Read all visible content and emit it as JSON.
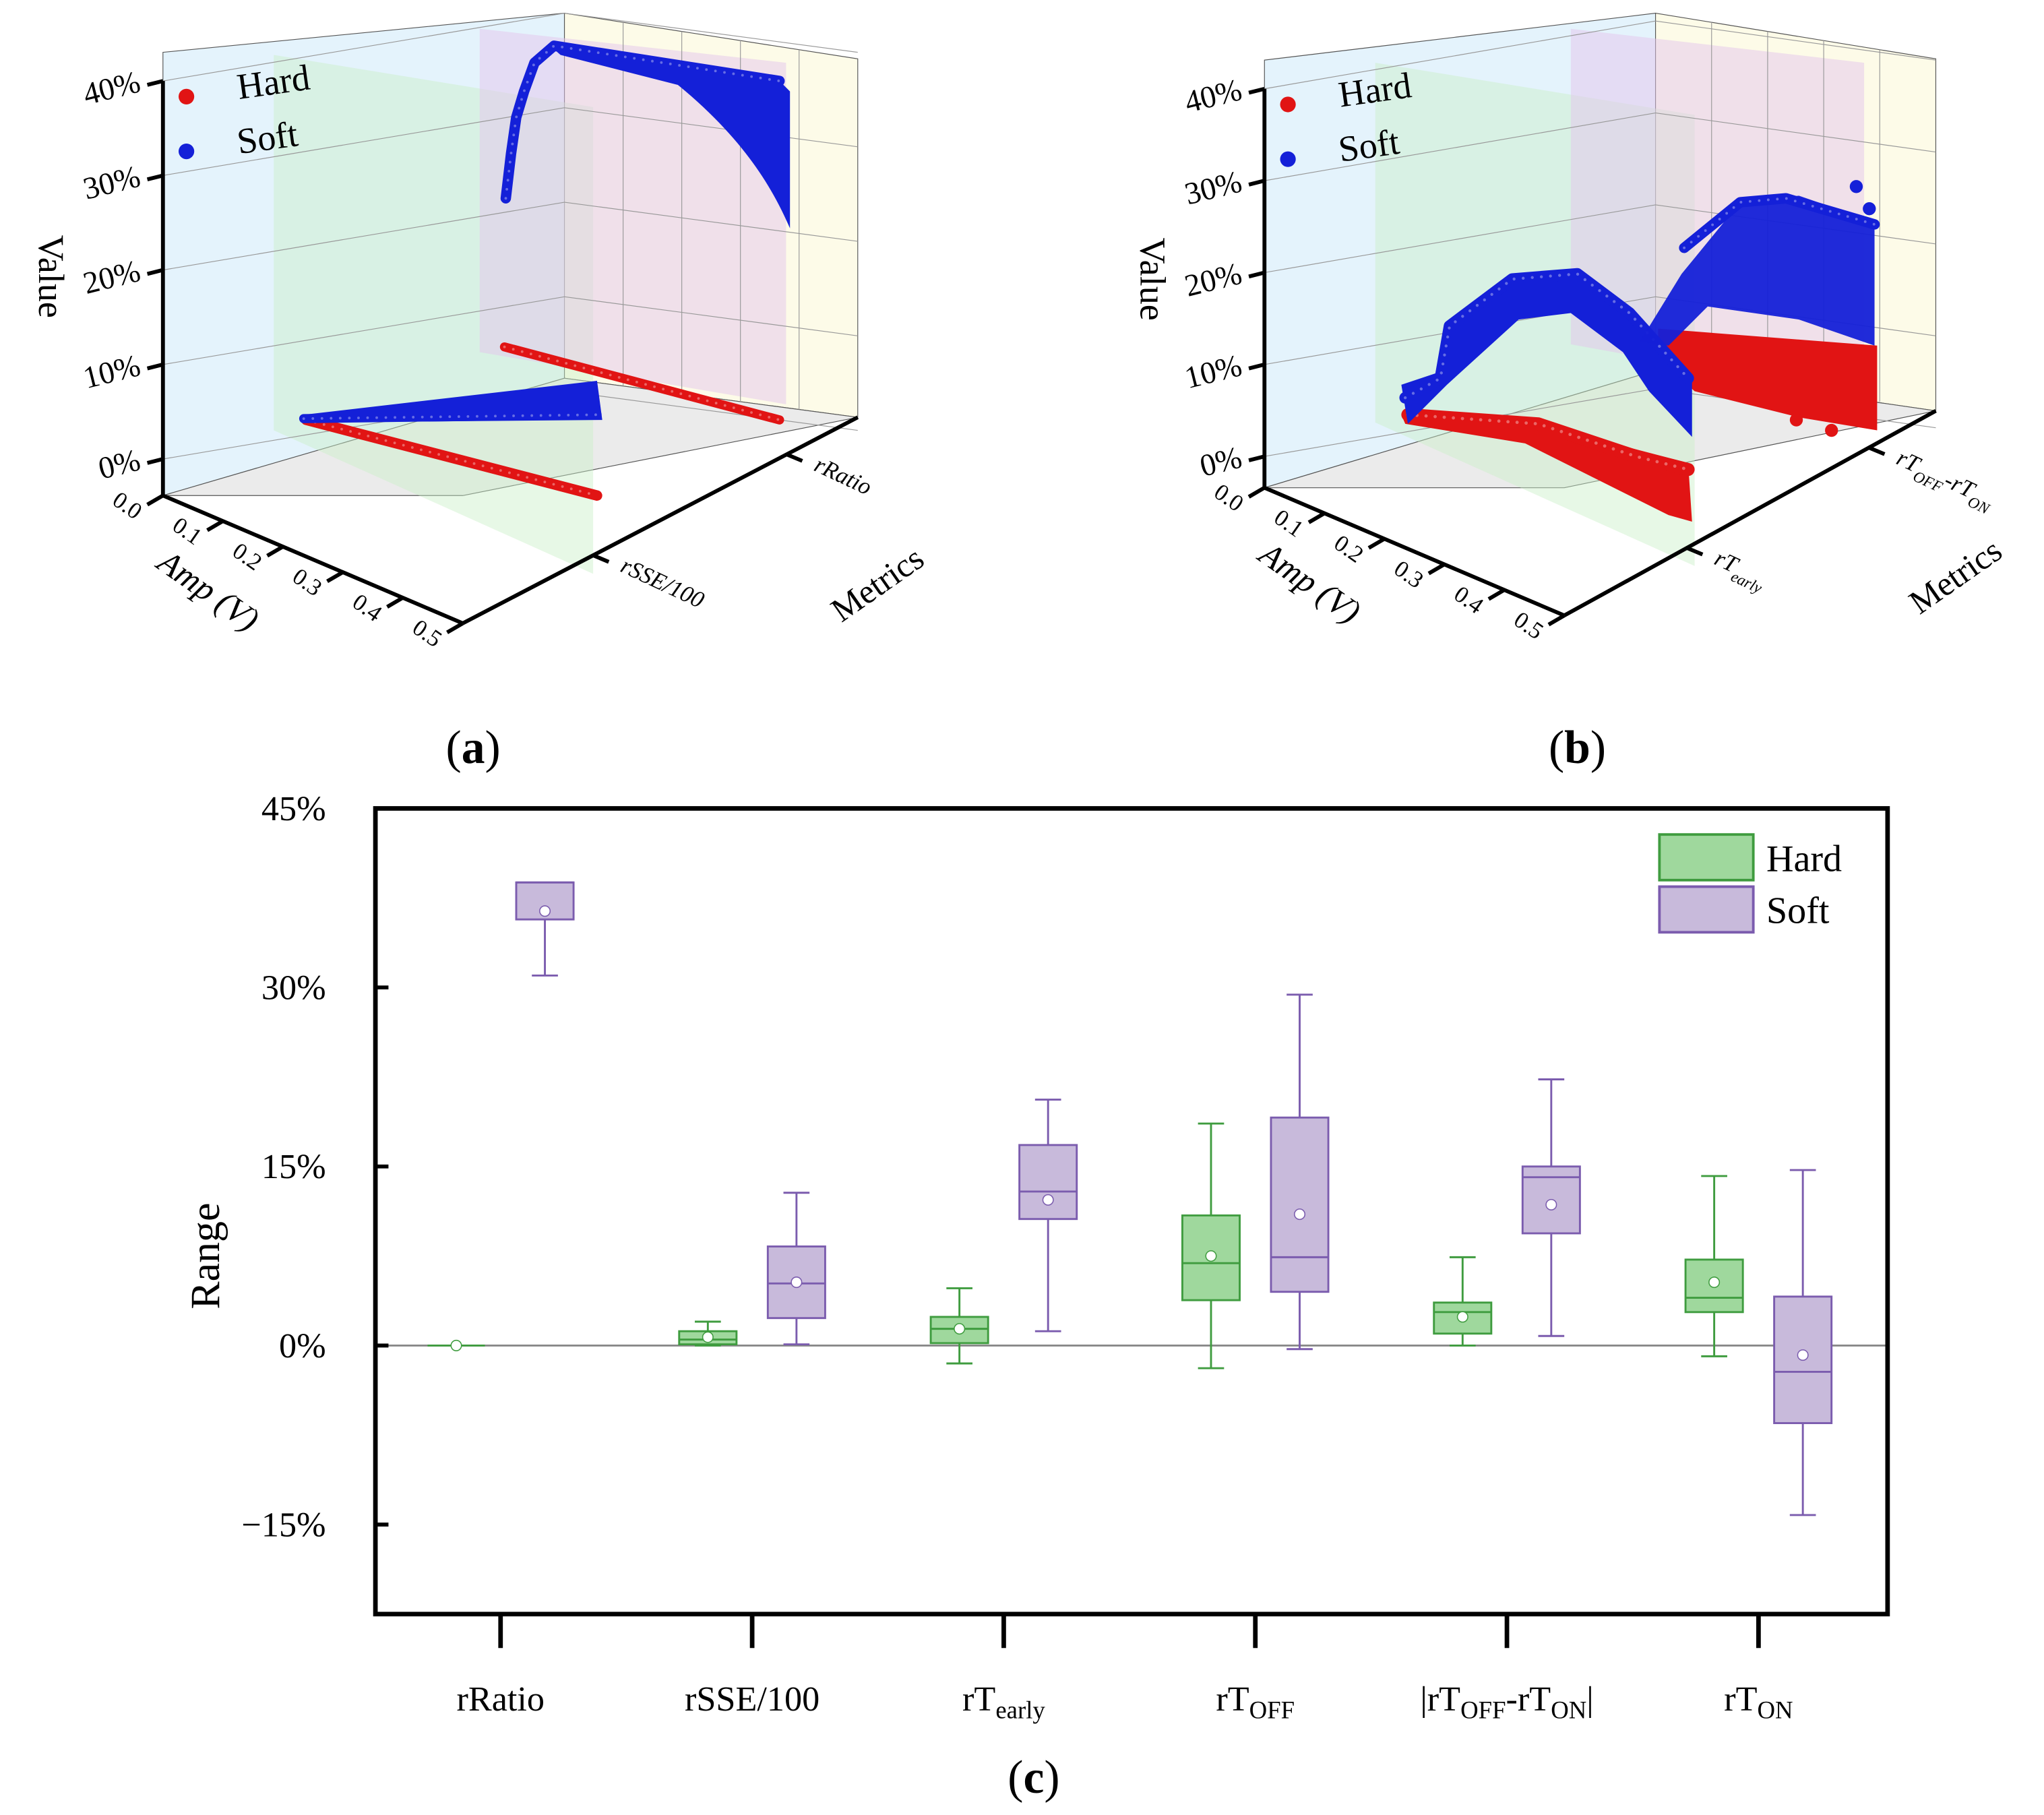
{
  "panels": {
    "a": {
      "label": "a"
    },
    "b": {
      "label": "b"
    },
    "c": {
      "label": "c"
    }
  },
  "chart_data": [
    {
      "type": "scatter",
      "panel": "a",
      "projection": "3d",
      "zlabel": "Value",
      "xlabel": "Amp (V)",
      "ylabel": "Metrics",
      "z_ticks": [
        "0%",
        "10%",
        "20%",
        "30%",
        "40%"
      ],
      "x_ticks": [
        "0.0",
        "0.1",
        "0.2",
        "0.3",
        "0.4",
        "0.5"
      ],
      "metric_ticks": [
        "rSSE/100",
        "rRatio"
      ],
      "legend": [
        {
          "name": "Hard",
          "color": "#e11414"
        },
        {
          "name": "Soft",
          "color": "#1420d8"
        }
      ],
      "series_summary": [
        {
          "name": "Hard",
          "metric": "rRatio",
          "value_range_pct": [
            0,
            0
          ]
        },
        {
          "name": "Hard",
          "metric": "rSSE/100",
          "value_range_pct": [
            0,
            2
          ]
        },
        {
          "name": "Soft",
          "metric": "rSSE/100",
          "value_range_pct": [
            0,
            13
          ]
        },
        {
          "name": "Soft",
          "metric": "rRatio",
          "value_range_pct": [
            31,
            39
          ]
        }
      ]
    },
    {
      "type": "scatter",
      "panel": "b",
      "projection": "3d",
      "zlabel": "Value",
      "xlabel": "Amp (V)",
      "ylabel": "Metrics",
      "z_ticks": [
        "0%",
        "10%",
        "20%",
        "30%",
        "40%"
      ],
      "x_ticks": [
        "0.0",
        "0.1",
        "0.2",
        "0.3",
        "0.4",
        "0.5"
      ],
      "metric_ticks": [
        {
          "parts": [
            {
              "t": "rT"
            },
            {
              "t": "early",
              "sub": true
            }
          ]
        },
        {
          "parts": [
            {
              "t": "rT"
            },
            {
              "t": "OFF",
              "sub": true
            },
            {
              "t": "-rT"
            },
            {
              "t": "ON",
              "sub": true
            }
          ]
        }
      ],
      "legend": [
        {
          "name": "Hard",
          "color": "#e11414"
        },
        {
          "name": "Soft",
          "color": "#1420d8"
        }
      ],
      "series_summary": [
        {
          "name": "Hard",
          "metric": "rT_early",
          "value_range_pct": [
            -2,
            5
          ]
        },
        {
          "name": "Soft",
          "metric": "rT_early",
          "value_range_pct": [
            1,
            21
          ]
        },
        {
          "name": "Hard",
          "metric": "rT_OFF-rT_ON",
          "value_range_pct": [
            0,
            8
          ]
        },
        {
          "name": "Soft",
          "metric": "rT_OFF-rT_ON",
          "value_range_pct": [
            1,
            22
          ]
        }
      ]
    },
    {
      "type": "box",
      "panel": "c",
      "title": "",
      "xlabel": "",
      "ylabel": "Range",
      "ylim": [
        -22.5,
        45
      ],
      "yticks": [
        45,
        30,
        15,
        0,
        -15
      ],
      "ytick_labels": [
        "45%",
        "30%",
        "15%",
        "0%",
        "−15%"
      ],
      "legend": {
        "position": "top-right",
        "entries": [
          {
            "name": "Hard",
            "fill": "#9fd89d",
            "stroke": "#3f9c3f"
          },
          {
            "name": "Soft",
            "fill": "#c8badb",
            "stroke": "#7b5cae"
          }
        ]
      },
      "categories": [
        {
          "parts": [
            {
              "t": "rRatio"
            }
          ]
        },
        {
          "parts": [
            {
              "t": "rSSE/100"
            }
          ]
        },
        {
          "parts": [
            {
              "t": "rT"
            },
            {
              "t": "early",
              "sub": true
            }
          ]
        },
        {
          "parts": [
            {
              "t": "rT"
            },
            {
              "t": "OFF",
              "sub": true
            }
          ]
        },
        {
          "parts": [
            {
              "t": "|rT"
            },
            {
              "t": "OFF",
              "sub": true
            },
            {
              "t": "-rT"
            },
            {
              "t": "ON",
              "sub": true
            },
            {
              "t": "|"
            }
          ]
        },
        {
          "parts": [
            {
              "t": "rT"
            },
            {
              "t": "ON",
              "sub": true
            }
          ]
        }
      ],
      "series": [
        {
          "name": "Hard",
          "boxes": [
            {
              "min": 0,
              "q1": 0,
              "median": 0,
              "q3": 0,
              "max": 0,
              "mean": 0
            },
            {
              "min": 0,
              "q1": 0.1,
              "median": 0.5,
              "q3": 1.2,
              "max": 2.0,
              "mean": 0.7
            },
            {
              "min": -1.5,
              "q1": 0.2,
              "median": 1.4,
              "q3": 2.4,
              "max": 4.8,
              "mean": 1.4
            },
            {
              "min": -1.9,
              "q1": 3.8,
              "median": 6.9,
              "q3": 10.9,
              "max": 18.6,
              "mean": 7.5
            },
            {
              "min": 0,
              "q1": 1.0,
              "median": 2.8,
              "q3": 3.6,
              "max": 7.4,
              "mean": 2.4
            },
            {
              "min": -0.9,
              "q1": 2.8,
              "median": 4.0,
              "q3": 7.2,
              "max": 14.2,
              "mean": 5.3
            }
          ]
        },
        {
          "name": "Soft",
          "boxes": [
            {
              "min": 31.0,
              "q1": 35.7,
              "median": 38.8,
              "q3": 38.8,
              "max": 38.8,
              "mean": 36.4
            },
            {
              "min": 0.1,
              "q1": 2.3,
              "median": 5.2,
              "q3": 8.3,
              "max": 12.8,
              "mean": 5.3
            },
            {
              "min": 1.2,
              "q1": 10.6,
              "median": 12.9,
              "q3": 16.8,
              "max": 20.6,
              "mean": 12.2
            },
            {
              "min": -0.3,
              "q1": 4.5,
              "median": 7.4,
              "q3": 19.1,
              "max": 29.4,
              "mean": 11.0
            },
            {
              "min": 0.8,
              "q1": 9.4,
              "median": 14.1,
              "q3": 15.0,
              "max": 22.3,
              "mean": 11.8
            },
            {
              "min": -14.2,
              "q1": -6.5,
              "median": -2.2,
              "q3": 4.1,
              "max": 14.7,
              "mean": -0.8
            }
          ]
        }
      ]
    }
  ]
}
